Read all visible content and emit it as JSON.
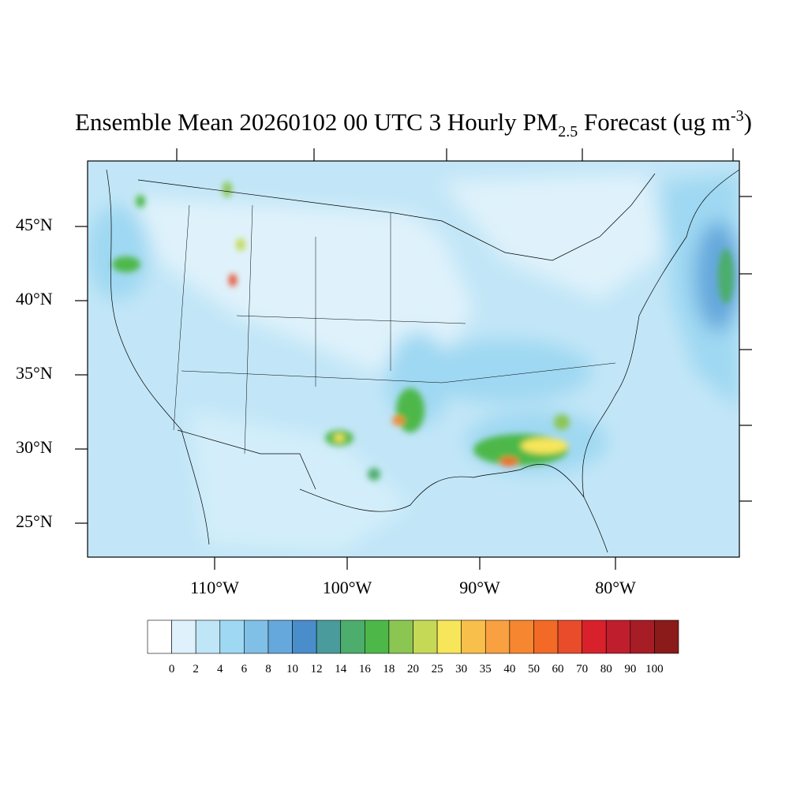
{
  "title": {
    "main": "Ensemble Mean 20260102 00 UTC 3 Hourly PM",
    "subscript": "2.5",
    "rest": " Forecast (ug m",
    "superscript": "-3",
    "close": ")"
  },
  "lat_labels": [
    "45°N",
    "40°N",
    "35°N",
    "30°N",
    "25°N"
  ],
  "lon_labels": [
    "110°W",
    "100°W",
    "90°W",
    "80°W"
  ],
  "colorbar": {
    "levels": [
      0,
      2,
      4,
      6,
      8,
      10,
      12,
      14,
      16,
      18,
      20,
      25,
      30,
      35,
      40,
      50,
      60,
      70,
      80,
      90,
      100
    ],
    "colors": [
      "#ffffff",
      "#dff2fb",
      "#bfe6f7",
      "#9fd8f2",
      "#80bfe6",
      "#65a8dc",
      "#4a8dcb",
      "#4a9c9c",
      "#4cad6c",
      "#4db848",
      "#8bc653",
      "#c5d957",
      "#f7e65a",
      "#f9bf4b",
      "#f9a041",
      "#f6862f",
      "#f26a25",
      "#e84c2a",
      "#d9212b",
      "#bf1e2d",
      "#a71d26",
      "#8b1a1a"
    ]
  }
}
